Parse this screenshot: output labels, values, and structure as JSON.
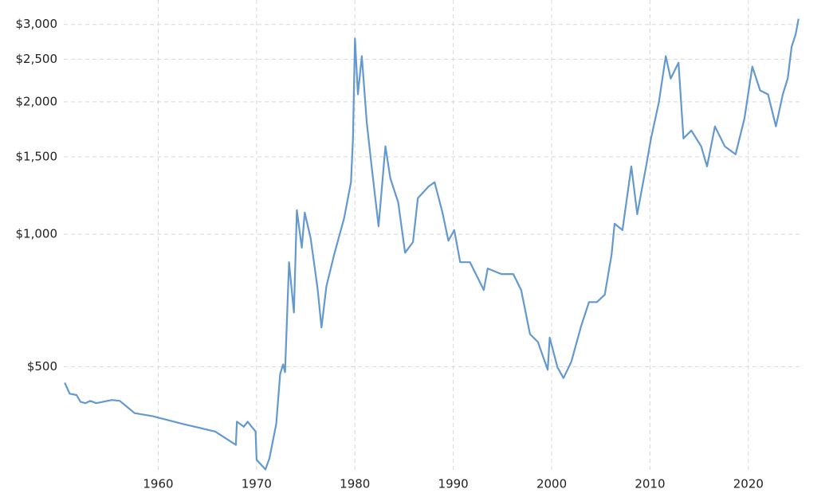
{
  "chart_data": {
    "type": "line",
    "log_y": true,
    "grid": true,
    "xlim": [
      1950.4,
      2025.2
    ],
    "ylim": [
      290,
      3150
    ],
    "xticks": [
      1960,
      1970,
      1980,
      1990,
      2000,
      2010,
      2020
    ],
    "yticks": [
      {
        "value": 500,
        "label": "$500"
      },
      {
        "value": 1000,
        "label": "$1,000"
      },
      {
        "value": 1500,
        "label": "$1,500"
      },
      {
        "value": 2000,
        "label": "$2,000"
      },
      {
        "value": 2500,
        "label": "$2,500"
      },
      {
        "value": 3000,
        "label": "$3,000"
      }
    ],
    "x": [
      1950.5,
      1951.0,
      1951.7,
      1952.1,
      1952.6,
      1953.1,
      1953.7,
      1955.3,
      1956.1,
      1956.9,
      1957.6,
      1959.4,
      1962.6,
      1965.8,
      1967.9,
      1968.0,
      1968.7,
      1969.1,
      1969.9,
      1970.0,
      1970.9,
      1971.3,
      1972.0,
      1972.4,
      1972.7,
      1972.9,
      1973.3,
      1973.8,
      1974.1,
      1974.6,
      1974.9,
      1975.5,
      1976.2,
      1976.6,
      1977.1,
      1977.9,
      1978.9,
      1979.6,
      1979.8,
      1980.0,
      1980.3,
      1980.7,
      1981.2,
      1981.7,
      1982.4,
      1983.1,
      1983.6,
      1984.4,
      1985.1,
      1985.9,
      1986.4,
      1987.5,
      1988.1,
      1988.9,
      1989.5,
      1990.1,
      1990.7,
      1991.7,
      1992.3,
      1993.1,
      1993.5,
      1994.9,
      1996.1,
      1996.9,
      1997.8,
      1998.6,
      1999.6,
      1999.8,
      2000.6,
      2001.2,
      2002.0,
      2003.0,
      2003.8,
      2004.6,
      2005.4,
      2006.1,
      2006.4,
      2007.2,
      2008.1,
      2008.7,
      2009.6,
      2010.1,
      2010.9,
      2011.6,
      2012.1,
      2012.9,
      2013.4,
      2014.2,
      2015.2,
      2015.8,
      2016.6,
      2017.6,
      2018.7,
      2019.6,
      2020.4,
      2021.2,
      2022.0,
      2022.8,
      2023.5,
      2024.0,
      2024.4,
      2024.8,
      2025.1
    ],
    "series": [
      {
        "color": "#6399cf",
        "values": [
          460,
          434,
          431,
          416,
          413,
          418,
          413,
          420,
          418,
          404,
          392,
          386,
          370,
          356,
          332,
          375,
          365,
          375,
          356,
          307,
          292,
          309,
          370,
          482,
          506,
          486,
          864,
          664,
          1134,
          932,
          1120,
          980,
          753,
          614,
          762,
          901,
          1088,
          1313,
          1652,
          2786,
          2080,
          2541,
          1796,
          1427,
          1043,
          1585,
          1340,
          1183,
          908,
          960,
          1208,
          1285,
          1313,
          1120,
          967,
          1022,
          864,
          864,
          812,
          747,
          836,
          812,
          812,
          747,
          593,
          569,
          492,
          582,
          498,
          471,
          513,
          619,
          701,
          701,
          729,
          901,
          1057,
          1022,
          1427,
          1111,
          1427,
          1652,
          1994,
          2541,
          2260,
          2456,
          1652,
          1722,
          1585,
          1427,
          1759,
          1585,
          1520,
          1833,
          2406,
          2123,
          2080,
          1759,
          2080,
          2260,
          2670,
          2846,
          3090
        ]
      }
    ]
  }
}
